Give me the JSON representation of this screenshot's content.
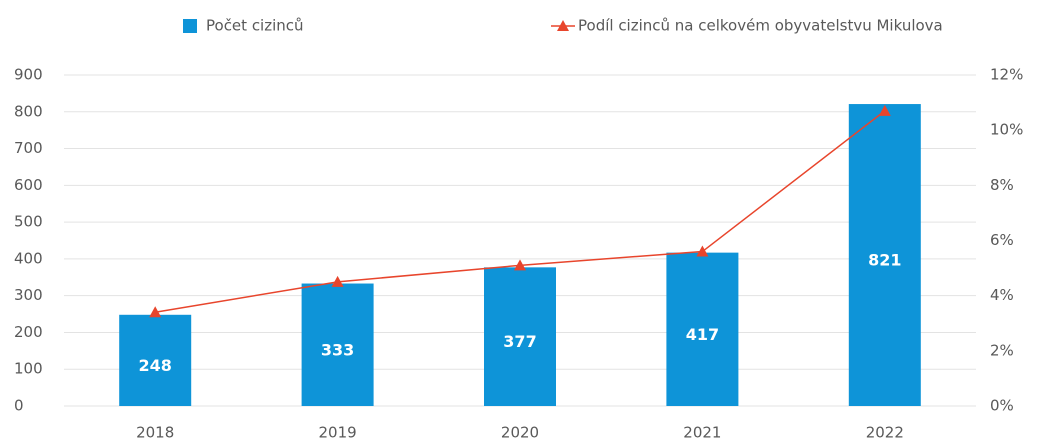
{
  "chart_data": {
    "type": "bar_line",
    "categories": [
      "2018",
      "2019",
      "2020",
      "2021",
      "2022"
    ],
    "series": [
      {
        "name": "Počet cizinců",
        "color": "#0e94d8",
        "values": [
          248,
          333,
          377,
          417,
          821
        ]
      },
      {
        "name": "Podíl cizinců na celkovém obyvatelstvu Mikulova",
        "color": "#e8452c",
        "axis": "y2",
        "values": [
          3.4,
          4.5,
          5.1,
          5.6,
          10.7
        ]
      }
    ],
    "ylim": [
      0,
      900
    ],
    "yticks": [
      0,
      100,
      200,
      300,
      400,
      500,
      600,
      700,
      800,
      900
    ],
    "y2lim": [
      0,
      12
    ],
    "y2ticks": [
      {
        "value": 0,
        "label": "0%"
      },
      {
        "value": 2,
        "label": "2%"
      },
      {
        "value": 4,
        "label": "4%"
      },
      {
        "value": 6,
        "label": "6%"
      },
      {
        "value": 8,
        "label": "8%"
      },
      {
        "value": 10,
        "label": "10%"
      },
      {
        "value": 12,
        "label": "12%"
      }
    ],
    "grid": true
  }
}
